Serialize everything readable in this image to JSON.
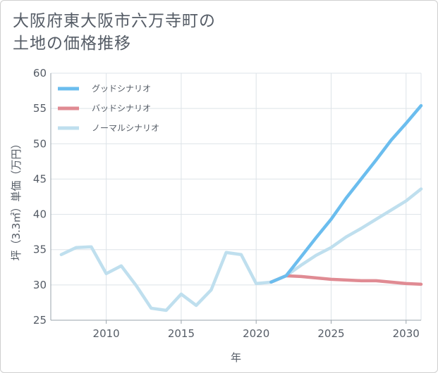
{
  "chart_data": {
    "type": "line",
    "title_lines": [
      "大阪府東大阪市六万寺町の",
      "土地の価格推移"
    ],
    "xlabel": "年",
    "ylabel": "坪（3.3㎡）単価（万円）",
    "xlim": [
      2006.3,
      2031
    ],
    "ylim": [
      25,
      60
    ],
    "x_ticks": [
      2010,
      2015,
      2020,
      2025,
      2030
    ],
    "y_ticks": [
      25,
      30,
      35,
      40,
      45,
      50,
      55,
      60
    ],
    "grid": true,
    "legend_position": "top-left",
    "series": [
      {
        "name": "グッドシナリオ",
        "color": "#6bbdee",
        "x": [
          2021,
          2022,
          2023,
          2024,
          2025,
          2026,
          2027,
          2028,
          2029,
          2030,
          2031
        ],
        "values": [
          30.4,
          31.3,
          34.0,
          36.7,
          39.3,
          42.3,
          45.0,
          47.7,
          50.5,
          52.9,
          55.4
        ]
      },
      {
        "name": "バッドシナリオ",
        "color": "#e08b93",
        "x": [
          2021,
          2022,
          2023,
          2024,
          2025,
          2026,
          2027,
          2028,
          2029,
          2030,
          2031
        ],
        "values": [
          30.4,
          31.3,
          31.2,
          31.0,
          30.8,
          30.7,
          30.6,
          30.6,
          30.4,
          30.2,
          30.1
        ]
      },
      {
        "name": "ノーマルシナリオ",
        "color": "#bfdfee",
        "x": [
          2007,
          2008,
          2009,
          2010,
          2011,
          2012,
          2013,
          2014,
          2015,
          2016,
          2017,
          2018,
          2019,
          2020,
          2021,
          2022,
          2023,
          2024,
          2025,
          2026,
          2027,
          2028,
          2029,
          2030,
          2031
        ],
        "values": [
          34.3,
          35.3,
          35.4,
          31.6,
          32.7,
          29.9,
          26.7,
          26.4,
          28.7,
          27.1,
          29.3,
          34.6,
          34.3,
          30.2,
          30.4,
          31.3,
          32.8,
          34.2,
          35.3,
          36.8,
          38.0,
          39.3,
          40.6,
          41.9,
          43.6
        ]
      }
    ]
  }
}
